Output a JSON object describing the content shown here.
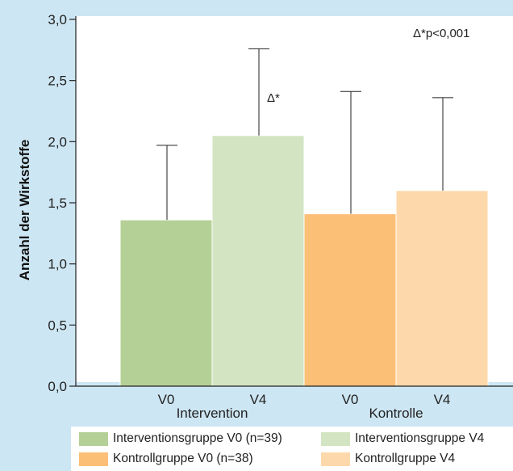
{
  "chart_data": {
    "type": "bar",
    "title": "",
    "xlabel": "",
    "ylabel": "Anzahl der Wirkstoffe",
    "ylim": [
      0,
      3
    ],
    "yticks": [
      "0,0",
      "0,5",
      "1,0",
      "1,5",
      "2,0",
      "2,5",
      "3,0"
    ],
    "grid": false,
    "legend_position": "bottom",
    "groups": [
      {
        "label": "Intervention",
        "bars": [
          {
            "tick": "V0",
            "series": "Interventionsgruppe V0 (n=39)",
            "value": 1.36,
            "error_upper": 1.97,
            "color": "#b5d096"
          },
          {
            "tick": "V4",
            "series": "Interventionsgruppe V4",
            "value": 2.05,
            "error_upper": 2.76,
            "color": "#d3e4c3"
          }
        ]
      },
      {
        "label": "Kontrolle",
        "bars": [
          {
            "tick": "V0",
            "series": "Kontrollgruppe V0 (n=38)",
            "value": 1.41,
            "error_upper": 2.41,
            "color": "#fcbf76"
          },
          {
            "tick": "V4",
            "series": "Kontrollgruppe V4",
            "value": 1.6,
            "error_upper": 2.36,
            "color": "#fdd8aa"
          }
        ]
      }
    ],
    "annotations": {
      "significance_note": "Δ*p<0,001",
      "bar_marker": "Δ*"
    }
  },
  "legend": {
    "items": [
      {
        "label": "Interventionsgruppe V0 (n=39)",
        "color": "#b5d096"
      },
      {
        "label": "Interventionsgruppe V4",
        "color": "#d3e4c3"
      },
      {
        "label": "Kontrollgruppe V0 (n=38)",
        "color": "#fcbf76"
      },
      {
        "label": "Kontrollgruppe V4",
        "color": "#fdd8aa"
      }
    ]
  },
  "colors": {
    "background": "#cde6f3",
    "plot_area": "#ffffff",
    "axis": "#222222"
  }
}
